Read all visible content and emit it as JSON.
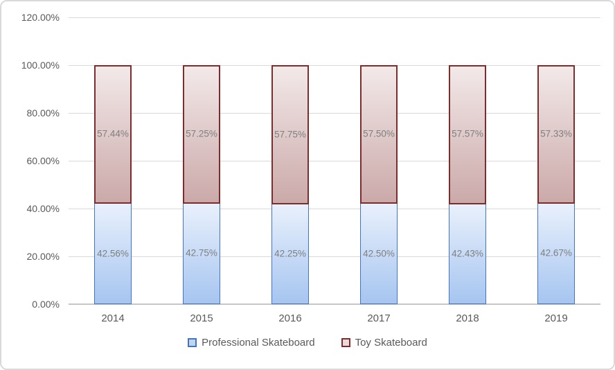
{
  "chart_data": {
    "type": "bar",
    "subtype": "stacked-100",
    "title": "",
    "categories": [
      "2014",
      "2015",
      "2016",
      "2017",
      "2018",
      "2019"
    ],
    "series": [
      {
        "name": "Professional Skateboard",
        "values": [
          42.56,
          42.75,
          42.25,
          42.5,
          42.43,
          42.67
        ],
        "data_labels": [
          "42.56%",
          "42.75%",
          "42.25%",
          "42.50%",
          "42.43%",
          "42.67%"
        ],
        "border_color": "#4472c4",
        "fill_top": "#eaf1fc",
        "fill_bottom": "#a6c5f0",
        "legend_swatch_fill": "#bdd7ee"
      },
      {
        "name": "Toy Skateboard",
        "values": [
          57.44,
          57.25,
          57.75,
          57.5,
          57.57,
          57.33
        ],
        "data_labels": [
          "57.44%",
          "57.25%",
          "57.75%",
          "57.50%",
          "57.57%",
          "57.33%"
        ],
        "border_color": "#7b2c2c",
        "fill_top": "#f3e9e9",
        "fill_bottom": "#cba9a9",
        "legend_swatch_fill": "#ebdada"
      }
    ],
    "y_axis": {
      "min": 0,
      "max": 120,
      "step": 20,
      "tick_labels": [
        "0.00%",
        "20.00%",
        "40.00%",
        "60.00%",
        "80.00%",
        "100.00%",
        "120.00%"
      ]
    },
    "x_axis": {
      "tick_labels": [
        "2014",
        "2015",
        "2016",
        "2017",
        "2018",
        "2019"
      ]
    },
    "grid": true,
    "legend_position": "bottom",
    "data_label_color": "#7f7f7f",
    "tick_label_color": "#595959",
    "gridline_color": "#d9d9d9"
  }
}
